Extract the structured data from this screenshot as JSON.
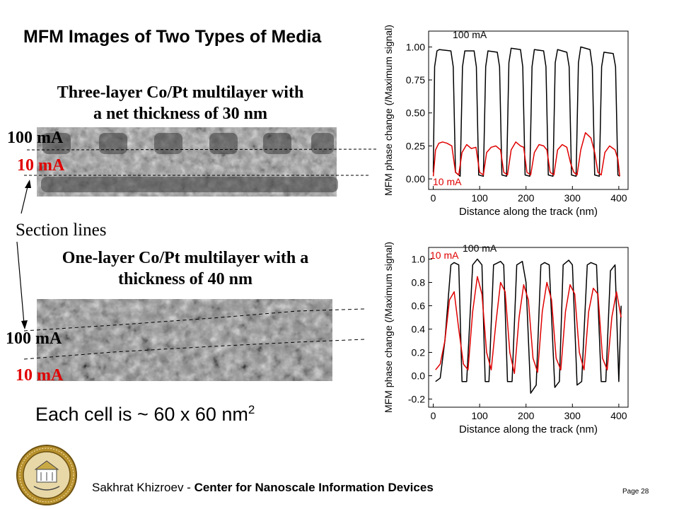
{
  "title": "MFM Images of Two Types of Media",
  "top_image": {
    "caption_line1": "Three-layer Co/Pt multilayer with",
    "caption_line2": "a net thickness of 30 nm",
    "label_100": "100 mA",
    "label_10": "10 mA"
  },
  "section_lines_label": "Section lines",
  "bottom_image": {
    "caption_line1": "One-layer Co/Pt multilayer with a",
    "caption_line2": "thickness of 40 nm",
    "label_100": "100 mA",
    "label_10": "10 mA"
  },
  "cell_note": {
    "text": "Each cell is ~ 60 x 60 nm",
    "superscript": "2"
  },
  "footer": {
    "author": "Sakhrat Khizroev - ",
    "org": "Center for Nanoscale Information Devices",
    "page": "Page 28"
  },
  "colors": {
    "red": "#e00000",
    "black": "#000000"
  },
  "chart_data": [
    {
      "type": "line",
      "xlabel": "Distance along the track (nm)",
      "ylabel": "MFM phase change (/Maximum signal)",
      "xlim": [
        -10,
        420
      ],
      "ylim": [
        -0.08,
        1.12
      ],
      "xticks": [
        0,
        100,
        200,
        300,
        400
      ],
      "yticks": [
        0.0,
        0.25,
        0.5,
        0.75,
        1.0
      ],
      "ytick_labels": [
        "0.00",
        "0.25",
        "0.50",
        "0.75",
        "1.00"
      ],
      "series": [
        {
          "name": "100 mA",
          "color": "#000000",
          "x": [
            0,
            3,
            8,
            13,
            38,
            43,
            48,
            58,
            63,
            68,
            88,
            93,
            98,
            108,
            113,
            118,
            138,
            143,
            148,
            158,
            163,
            168,
            188,
            193,
            198,
            208,
            213,
            218,
            238,
            243,
            248,
            258,
            263,
            268,
            288,
            293,
            298,
            308,
            313,
            318,
            338,
            343,
            348,
            358,
            363,
            368,
            388,
            393,
            398,
            402
          ],
          "y": [
            0.05,
            0.85,
            0.97,
            0.98,
            0.97,
            0.85,
            0.05,
            0.02,
            0.85,
            0.97,
            0.97,
            0.85,
            0.03,
            0.02,
            0.85,
            0.97,
            0.96,
            0.85,
            0.03,
            0.02,
            0.88,
            0.99,
            0.98,
            0.85,
            0.03,
            0.02,
            0.85,
            0.98,
            0.97,
            0.85,
            0.03,
            0.02,
            0.88,
            0.98,
            0.96,
            0.85,
            0.03,
            0.02,
            0.88,
            1.0,
            0.98,
            0.85,
            0.03,
            0.02,
            0.85,
            0.96,
            0.95,
            0.85,
            0.03,
            0.02
          ]
        },
        {
          "name": "10 mA",
          "color": "#e00000",
          "x": [
            0,
            5,
            12,
            20,
            30,
            40,
            48,
            55,
            62,
            72,
            82,
            92,
            100,
            108,
            115,
            125,
            135,
            145,
            152,
            160,
            168,
            178,
            188,
            195,
            202,
            210,
            218,
            228,
            238,
            245,
            252,
            260,
            268,
            278,
            288,
            296,
            303,
            310,
            318,
            328,
            340,
            348,
            355,
            362,
            370,
            380,
            392,
            398,
            402
          ],
          "y": [
            0.02,
            0.22,
            0.27,
            0.28,
            0.27,
            0.25,
            0.05,
            0.03,
            0.2,
            0.26,
            0.23,
            0.24,
            0.05,
            0.03,
            0.2,
            0.24,
            0.25,
            0.22,
            0.05,
            0.03,
            0.22,
            0.28,
            0.25,
            0.24,
            0.05,
            0.03,
            0.2,
            0.26,
            0.25,
            0.22,
            0.05,
            0.03,
            0.22,
            0.26,
            0.24,
            0.12,
            0.05,
            0.03,
            0.22,
            0.35,
            0.31,
            0.2,
            0.05,
            0.03,
            0.2,
            0.25,
            0.22,
            0.15,
            0.02
          ]
        }
      ],
      "annotations": [
        {
          "text": "100 mA",
          "color": "#000000"
        },
        {
          "text": "10 mA",
          "color": "#e00000"
        }
      ]
    },
    {
      "type": "line",
      "xlabel": "Distance along the track (nm)",
      "ylabel": "MFM phase change (/Maximum signal)",
      "xlim": [
        -10,
        420
      ],
      "ylim": [
        -0.27,
        1.1
      ],
      "xticks": [
        0,
        100,
        200,
        300,
        400
      ],
      "yticks": [
        -0.2,
        0.0,
        0.2,
        0.4,
        0.6,
        0.8,
        1.0
      ],
      "ytick_labels": [
        "-0.2",
        "0.0",
        "0.2",
        "0.4",
        "0.6",
        "0.8",
        "1.0"
      ],
      "series": [
        {
          "name": "100 mA",
          "color": "#000000",
          "x": [
            5,
            15,
            25,
            38,
            45,
            55,
            62,
            72,
            85,
            95,
            105,
            112,
            120,
            130,
            145,
            152,
            160,
            170,
            180,
            192,
            200,
            210,
            222,
            232,
            240,
            250,
            262,
            272,
            280,
            292,
            300,
            310,
            320,
            332,
            340,
            352,
            362,
            372,
            382,
            392,
            400,
            405
          ],
          "y": [
            -0.05,
            -0.02,
            0.3,
            0.95,
            0.97,
            0.95,
            -0.05,
            -0.05,
            0.95,
            1.0,
            0.95,
            -0.05,
            -0.05,
            0.95,
            0.98,
            0.95,
            -0.05,
            -0.05,
            0.95,
            0.98,
            0.8,
            -0.15,
            -0.08,
            0.95,
            0.97,
            0.95,
            -0.1,
            -0.05,
            0.95,
            0.99,
            0.95,
            -0.08,
            -0.05,
            0.95,
            0.97,
            0.95,
            -0.05,
            -0.05,
            0.9,
            0.95,
            -0.05,
            0.6
          ]
        },
        {
          "name": "10 mA",
          "color": "#e00000",
          "x": [
            5,
            15,
            25,
            35,
            45,
            55,
            65,
            75,
            85,
            95,
            105,
            115,
            125,
            135,
            145,
            155,
            165,
            175,
            185,
            195,
            205,
            215,
            225,
            235,
            245,
            255,
            265,
            275,
            285,
            295,
            305,
            315,
            325,
            335,
            345,
            355,
            365,
            375,
            385,
            395,
            405
          ],
          "y": [
            0.05,
            0.1,
            0.3,
            0.65,
            0.72,
            0.4,
            0.1,
            0.05,
            0.55,
            0.85,
            0.7,
            0.2,
            0.05,
            0.45,
            0.8,
            0.72,
            0.2,
            0.02,
            0.5,
            0.78,
            0.65,
            0.15,
            0.03,
            0.55,
            0.8,
            0.65,
            0.15,
            0.05,
            0.55,
            0.78,
            0.7,
            0.2,
            0.05,
            0.55,
            0.75,
            0.7,
            0.15,
            0.05,
            0.5,
            0.72,
            0.5
          ]
        }
      ],
      "annotations": [
        {
          "text": "10 mA",
          "color": "#e00000"
        },
        {
          "text": "100 mA",
          "color": "#000000"
        }
      ]
    }
  ]
}
